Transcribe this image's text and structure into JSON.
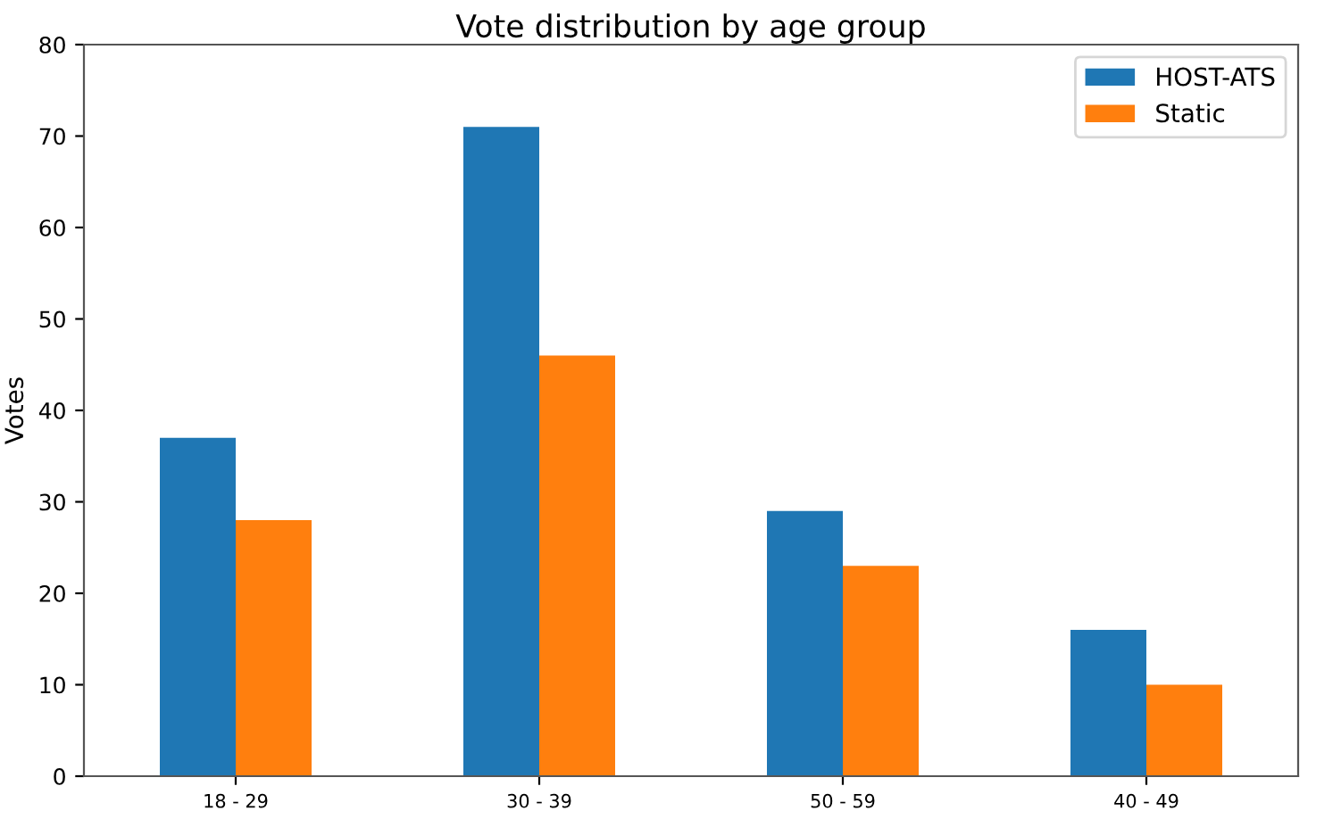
{
  "chart_data": {
    "type": "bar",
    "title": "Vote distribution by age group",
    "ylabel": "Votes",
    "categories": [
      "18 - 29",
      "30 - 39",
      "50 - 59",
      "40 - 49"
    ],
    "series": [
      {
        "name": "HOST-ATS",
        "color": "#1f77b4",
        "values": [
          37,
          71,
          29,
          16
        ]
      },
      {
        "name": "Static",
        "color": "#ff7f0e",
        "values": [
          28,
          46,
          23,
          10
        ]
      }
    ],
    "ylim": [
      0,
      80
    ],
    "yticks": [
      0,
      10,
      20,
      30,
      40,
      50,
      60,
      70,
      80
    ],
    "grid": false,
    "legend": "top right"
  }
}
